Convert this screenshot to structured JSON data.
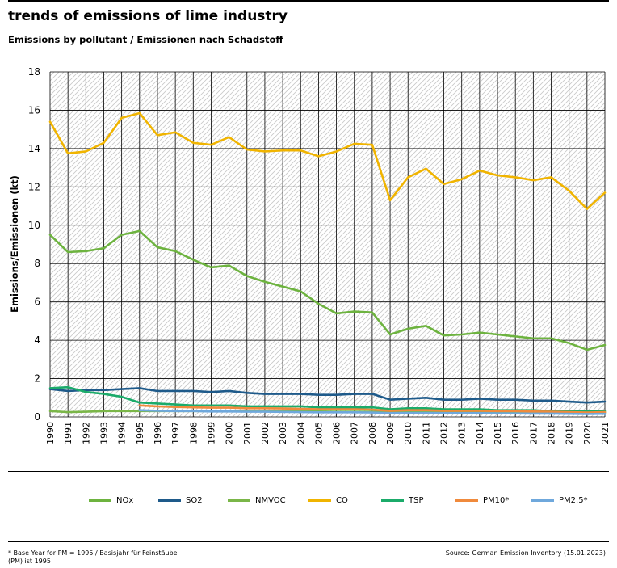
{
  "title": "trends of emissions of lime industry",
  "subtitle": "Emissions by pollutant / Emissionen nach Schadstoff",
  "footnote": "* Base Year for PM = 1995 / Basisjahr für Feinstäube (PM) ist 1995",
  "source": "Source: German Emission Inventory (15.01.2023)",
  "chart_data": {
    "type": "line",
    "ylabel": "Emissions/Emissionen (kt)",
    "xlabel": "",
    "ylim": [
      0,
      18
    ],
    "yticks": [
      0,
      2,
      4,
      6,
      8,
      10,
      12,
      14,
      16,
      18
    ],
    "grid": true,
    "legend_position": "bottom",
    "x": [
      "1990",
      "1991",
      "1992",
      "1993",
      "1994",
      "1995",
      "1996",
      "1997",
      "1998",
      "1999",
      "2000",
      "2001",
      "2002",
      "2003",
      "2004",
      "2005",
      "2006",
      "2007",
      "2008",
      "2009",
      "2010",
      "2011",
      "2012",
      "2013",
      "2014",
      "2015",
      "2016",
      "2017",
      "2018",
      "2019",
      "2020",
      "2021"
    ],
    "series": [
      {
        "name": "NOx",
        "color": "#6db33f",
        "values": [
          9.5,
          8.6,
          8.65,
          8.8,
          9.5,
          9.7,
          8.85,
          8.65,
          8.2,
          7.8,
          7.9,
          7.35,
          7.05,
          6.8,
          6.55,
          5.9,
          5.4,
          5.5,
          5.45,
          4.3,
          4.6,
          4.75,
          4.25,
          4.3,
          4.4,
          4.3,
          4.2,
          4.1,
          4.1,
          3.85,
          3.5,
          3.75
        ]
      },
      {
        "name": "SO2",
        "color": "#1e5a8a",
        "values": [
          1.45,
          1.35,
          1.4,
          1.4,
          1.45,
          1.5,
          1.35,
          1.35,
          1.35,
          1.3,
          1.35,
          1.25,
          1.2,
          1.2,
          1.2,
          1.15,
          1.15,
          1.2,
          1.2,
          0.9,
          0.95,
          1.0,
          0.9,
          0.9,
          0.95,
          0.9,
          0.9,
          0.85,
          0.85,
          0.8,
          0.75,
          0.8
        ]
      },
      {
        "name": "NMVOC",
        "color": "#7ab648",
        "values": [
          0.3,
          0.25,
          0.27,
          0.3,
          0.3,
          0.3,
          0.3,
          0.3,
          0.3,
          0.3,
          0.3,
          0.3,
          0.3,
          0.3,
          0.28,
          0.28,
          0.27,
          0.27,
          0.27,
          0.25,
          0.25,
          0.26,
          0.25,
          0.25,
          0.25,
          0.25,
          0.24,
          0.23,
          0.23,
          0.22,
          0.2,
          0.22
        ]
      },
      {
        "name": "CO",
        "color": "#f0b400",
        "values": [
          15.4,
          13.75,
          13.85,
          14.3,
          15.6,
          15.85,
          14.7,
          14.85,
          14.3,
          14.2,
          14.6,
          13.95,
          13.85,
          13.9,
          13.9,
          13.6,
          13.85,
          14.25,
          14.2,
          11.3,
          12.5,
          12.95,
          12.15,
          12.4,
          12.85,
          12.6,
          12.5,
          12.35,
          12.5,
          11.8,
          10.85,
          11.7
        ]
      },
      {
        "name": "TSP",
        "color": "#1bab6a",
        "values": [
          1.5,
          1.55,
          1.3,
          1.2,
          1.05,
          0.75,
          0.7,
          0.65,
          0.6,
          0.6,
          0.6,
          0.55,
          0.55,
          0.55,
          0.55,
          0.5,
          0.5,
          0.5,
          0.5,
          0.4,
          0.45,
          0.45,
          0.4,
          0.4,
          0.4,
          0.35,
          0.35,
          0.35,
          0.3,
          0.3,
          0.3,
          0.3
        ]
      },
      {
        "name": "PM10*",
        "color": "#f08a3c",
        "values": [
          null,
          null,
          null,
          null,
          null,
          0.6,
          0.55,
          0.52,
          0.5,
          0.48,
          0.48,
          0.45,
          0.45,
          0.44,
          0.42,
          0.4,
          0.4,
          0.4,
          0.38,
          0.32,
          0.35,
          0.35,
          0.32,
          0.32,
          0.32,
          0.3,
          0.3,
          0.28,
          0.27,
          0.25,
          0.23,
          0.25
        ]
      },
      {
        "name": "PM2.5*",
        "color": "#6fa8dc",
        "values": [
          null,
          null,
          null,
          null,
          null,
          0.35,
          0.32,
          0.3,
          0.3,
          0.28,
          0.28,
          0.27,
          0.27,
          0.26,
          0.25,
          0.24,
          0.24,
          0.24,
          0.23,
          0.2,
          0.21,
          0.21,
          0.2,
          0.2,
          0.2,
          0.19,
          0.18,
          0.17,
          0.17,
          0.16,
          0.15,
          0.16
        ]
      }
    ]
  }
}
